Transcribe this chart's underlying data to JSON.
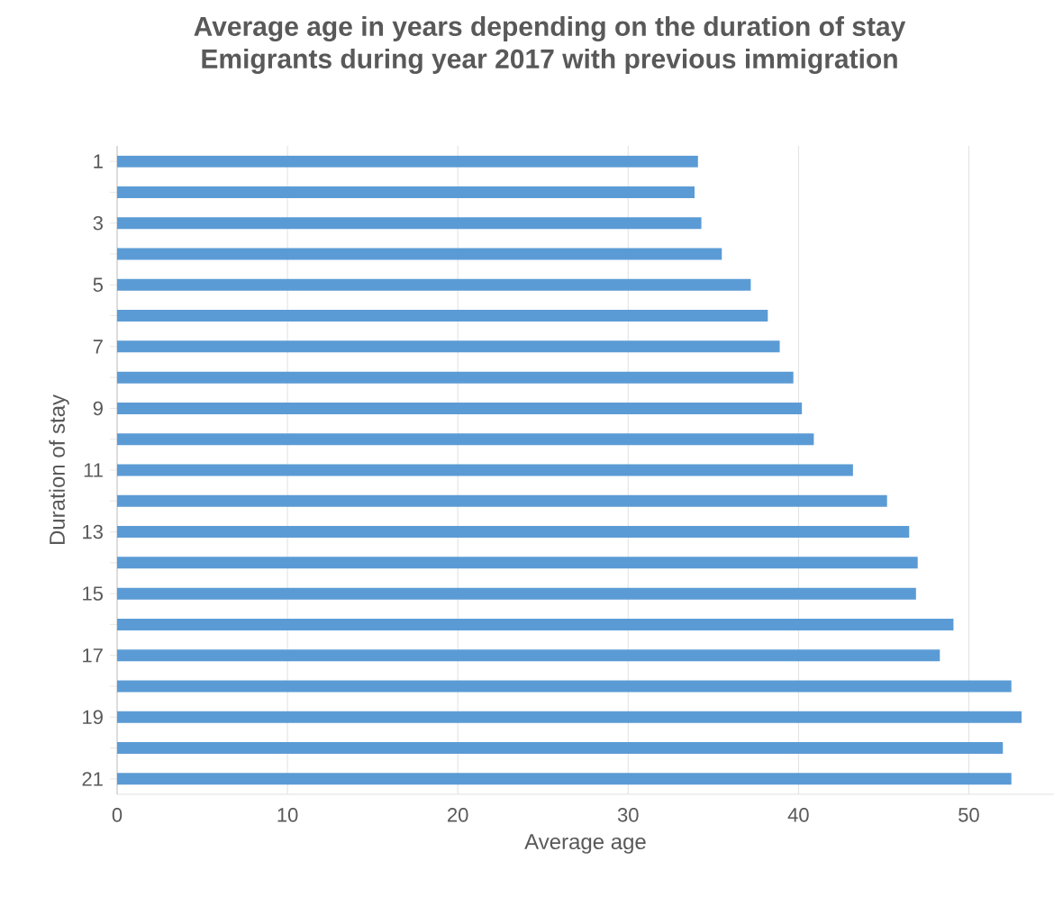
{
  "chart_data": {
    "type": "bar",
    "orientation": "horizontal",
    "title": "Average age in years depending on the duration of stay",
    "subtitle": "Emigrants during year 2017 with previous immigration",
    "xlabel": "Average age",
    "ylabel": "Duration of stay",
    "categories": [
      "1",
      null,
      "3",
      null,
      "5",
      null,
      "7",
      null,
      "9",
      null,
      "11",
      null,
      "13",
      null,
      "15",
      null,
      "17",
      null,
      "19",
      null,
      "21"
    ],
    "values": [
      34.1,
      33.9,
      34.3,
      35.5,
      37.2,
      38.2,
      38.9,
      39.7,
      40.2,
      40.9,
      43.2,
      45.2,
      46.5,
      47.0,
      46.9,
      49.1,
      48.3,
      52.5,
      53.1,
      52.0,
      52.5
    ],
    "color": "#5b9bd5",
    "xlim": [
      0,
      55
    ],
    "xticks": [
      0,
      10,
      20,
      30,
      40,
      50
    ],
    "grid": "x"
  }
}
